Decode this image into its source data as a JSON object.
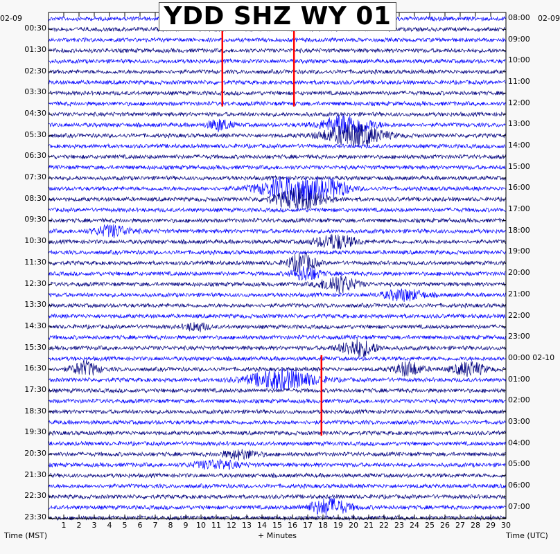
{
  "title": "YDD SHZ WY 01",
  "left_date": "02-09",
  "right_date": "02-09",
  "right_date_change_label": "00:00 02-10",
  "left_axis_label": "Time (MST)",
  "right_axis_label": "Time (UTC)",
  "x_axis_label": "+ Minutes",
  "colors": {
    "trace_dark": "#00007f",
    "trace_blue": "#0000ff",
    "event_marker": "#ff0000",
    "background": "#ffffff",
    "axis": "#000000"
  },
  "chart_data": {
    "type": "helicorder",
    "title": "YDD SHZ WY 01",
    "xlabel": "+ Minutes",
    "ylabel_left": "Time (MST)",
    "ylabel_right": "Time (UTC)",
    "xlim": [
      0,
      30
    ],
    "x_ticks": [
      "1",
      "2",
      "3",
      "4",
      "5",
      "6",
      "7",
      "8",
      "9",
      "10",
      "11",
      "12",
      "13",
      "14",
      "15",
      "16",
      "17",
      "18",
      "19",
      "20",
      "21",
      "22",
      "23",
      "24",
      "25",
      "26",
      "27",
      "28",
      "29",
      "30"
    ],
    "lines_per_hour": 2,
    "num_lines": 48,
    "left_tick_labels": [
      "00:30",
      "01:30",
      "02:30",
      "03:30",
      "04:30",
      "05:30",
      "06:30",
      "07:30",
      "08:30",
      "09:30",
      "10:30",
      "11:30",
      "12:30",
      "13:30",
      "14:30",
      "15:30",
      "16:30",
      "17:30",
      "18:30",
      "19:30",
      "20:30",
      "21:30",
      "22:30",
      "23:30"
    ],
    "right_tick_labels": [
      "08:00",
      "09:00",
      "10:00",
      "11:00",
      "12:00",
      "13:00",
      "14:00",
      "15:00",
      "16:00",
      "17:00",
      "18:00",
      "19:00",
      "20:00",
      "21:00",
      "22:00",
      "23:00",
      "00:00 02-10",
      "01:00",
      "02:00",
      "03:00",
      "04:00",
      "05:00",
      "06:00",
      "07:00"
    ],
    "trace_color_cycle": [
      "#0000ff",
      "#00007f",
      "#0000ff",
      "#00007f"
    ],
    "events": [
      {
        "line_start": 0,
        "line_end": 8,
        "minute": 11.4,
        "color": "#ff0000"
      },
      {
        "line_start": 0,
        "line_end": 8,
        "minute": 16.1,
        "color": "#ff0000"
      },
      {
        "line_start": 32,
        "line_end": 39,
        "minute": 17.9,
        "color": "#ff0000"
      }
    ],
    "bursts": [
      {
        "line": 10,
        "minute": 11.2,
        "amplitude": 8,
        "width": 1.0
      },
      {
        "line": 10,
        "minute": 19.6,
        "amplitude": 14,
        "width": 2.2
      },
      {
        "line": 11,
        "minute": 20.0,
        "amplitude": 16,
        "width": 2.6
      },
      {
        "line": 16,
        "minute": 16.3,
        "amplitude": 18,
        "width": 3.2
      },
      {
        "line": 17,
        "minute": 16.4,
        "amplitude": 14,
        "width": 2.2
      },
      {
        "line": 16,
        "minute": 18.9,
        "amplitude": 8,
        "width": 1.0
      },
      {
        "line": 20,
        "minute": 4.2,
        "amplitude": 8,
        "width": 1.6
      },
      {
        "line": 21,
        "minute": 18.8,
        "amplitude": 10,
        "width": 1.8
      },
      {
        "line": 23,
        "minute": 16.6,
        "amplitude": 14,
        "width": 1.2
      },
      {
        "line": 24,
        "minute": 16.9,
        "amplitude": 10,
        "width": 1.2
      },
      {
        "line": 25,
        "minute": 19.0,
        "amplitude": 12,
        "width": 1.6
      },
      {
        "line": 26,
        "minute": 23.3,
        "amplitude": 8,
        "width": 1.8
      },
      {
        "line": 29,
        "minute": 9.7,
        "amplitude": 6,
        "width": 1.0
      },
      {
        "line": 31,
        "minute": 20.3,
        "amplitude": 12,
        "width": 1.6
      },
      {
        "line": 33,
        "minute": 2.4,
        "amplitude": 10,
        "width": 1.2
      },
      {
        "line": 33,
        "minute": 23.6,
        "amplitude": 10,
        "width": 1.2
      },
      {
        "line": 33,
        "minute": 27.6,
        "amplitude": 10,
        "width": 1.4
      },
      {
        "line": 34,
        "minute": 15.3,
        "amplitude": 14,
        "width": 3.0
      },
      {
        "line": 41,
        "minute": 12.6,
        "amplitude": 6,
        "width": 1.6
      },
      {
        "line": 42,
        "minute": 11.0,
        "amplitude": 6,
        "width": 2.0
      },
      {
        "line": 46,
        "minute": 18.4,
        "amplitude": 12,
        "width": 1.8
      }
    ]
  }
}
